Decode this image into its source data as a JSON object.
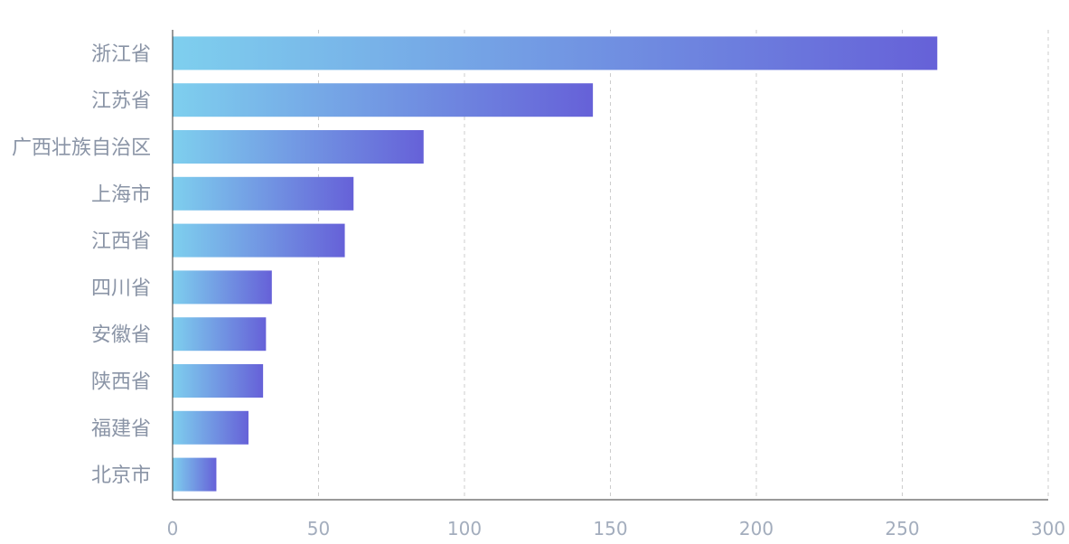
{
  "chart_data": {
    "type": "bar",
    "orientation": "horizontal",
    "categories": [
      "浙江省",
      "江苏省",
      "广西壮族自治区",
      "上海市",
      "江西省",
      "四川省",
      "安徽省",
      "陕西省",
      "福建省",
      "北京市"
    ],
    "values": [
      262,
      144,
      86,
      62,
      59,
      34,
      32,
      31,
      26,
      15
    ],
    "xlim": [
      0,
      300
    ],
    "x_ticks": [
      "0",
      "50",
      "100",
      "150",
      "200",
      "250",
      "300"
    ],
    "grid": "vertical dashed",
    "colors": {
      "bar_start": "#7ecfee",
      "bar_end": "#6661d8",
      "axis": "#333333",
      "grid": "#cccccc"
    }
  }
}
